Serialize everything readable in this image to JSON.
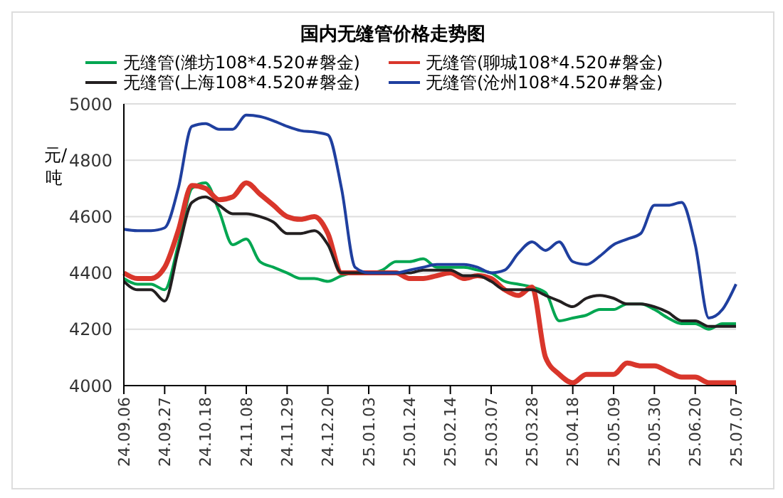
{
  "chart_data": {
    "type": "line",
    "title": "国内无缝管价格走势图",
    "ylabel": "元/吨",
    "categories": [
      "24.09.06",
      null,
      null,
      "24.09.27",
      null,
      null,
      "24.10.18",
      null,
      null,
      "24.11.08",
      null,
      null,
      "24.11.29",
      null,
      null,
      "24.12.20",
      null,
      null,
      "25.01.03",
      null,
      null,
      "25.01.24",
      null,
      null,
      "25.02.14",
      null,
      null,
      "25.03.07",
      null,
      null,
      "25.03.28",
      null,
      null,
      "25.04.18",
      null,
      null,
      "25.05.09",
      null,
      null,
      "25.05.30",
      null,
      null,
      "25.06.20",
      null,
      null,
      "25.07.07"
    ],
    "series": [
      {
        "name": "无缝管(潍坊108*4.520#磐金)",
        "color": "#00a651",
        "values": [
          4380,
          4360,
          4360,
          4340,
          4500,
          4700,
          4720,
          4620,
          4500,
          4520,
          4440,
          4420,
          4400,
          4380,
          4380,
          4370,
          4390,
          4400,
          4400,
          4410,
          4440,
          4440,
          4450,
          4420,
          4420,
          4420,
          4410,
          4400,
          4370,
          4360,
          4350,
          4330,
          4230,
          4240,
          4250,
          4270,
          4270,
          4290,
          4290,
          4270,
          4240,
          4220,
          4220,
          4200,
          4220,
          4220
        ]
      },
      {
        "name": "无缝管(聊城108*4.520#磐金)",
        "color": "#d9362b",
        "values": [
          4400,
          4380,
          4380,
          4420,
          4550,
          4710,
          4700,
          4660,
          4670,
          4720,
          4680,
          4640,
          4600,
          4590,
          4600,
          4540,
          4400,
          4400,
          4400,
          4400,
          4400,
          4380,
          4380,
          4390,
          4400,
          4380,
          4390,
          4380,
          4340,
          4320,
          4350,
          4100,
          4040,
          4010,
          4040,
          4040,
          4040,
          4080,
          4070,
          4070,
          4050,
          4030,
          4030,
          4010,
          4010,
          4010
        ]
      },
      {
        "name": "无缝管(上海108*4.520#磐金)",
        "color": "#231f20",
        "values": [
          4370,
          4340,
          4340,
          4300,
          4480,
          4650,
          4670,
          4640,
          4610,
          4610,
          4600,
          4580,
          4540,
          4540,
          4550,
          4500,
          4400,
          4400,
          4400,
          4400,
          4400,
          4400,
          4410,
          4410,
          4410,
          4390,
          4390,
          4370,
          4340,
          4340,
          4340,
          4320,
          4300,
          4280,
          4310,
          4320,
          4310,
          4290,
          4290,
          4280,
          4260,
          4230,
          4230,
          4210,
          4210,
          4210
        ]
      },
      {
        "name": "无缝管(沧州108*4.520#磐金)",
        "color": "#1f3f9f",
        "values": [
          4555,
          4550,
          4550,
          4560,
          4700,
          4920,
          4930,
          4910,
          4910,
          4960,
          4955,
          4940,
          4920,
          4905,
          4900,
          4890,
          4700,
          4420,
          4400,
          4400,
          4400,
          4410,
          4420,
          4430,
          4430,
          4430,
          4420,
          4400,
          4410,
          4470,
          4510,
          4480,
          4510,
          4440,
          4430,
          4460,
          4500,
          4520,
          4540,
          4640,
          4640,
          4650,
          4500,
          4240,
          4270,
          4360
        ]
      }
    ],
    "ylim": [
      4000,
      5000
    ],
    "yticks": [
      4000,
      4200,
      4400,
      4600,
      4800,
      5000
    ],
    "grid": "y",
    "legend": "top",
    "marker": "none",
    "line_style": "solid"
  }
}
